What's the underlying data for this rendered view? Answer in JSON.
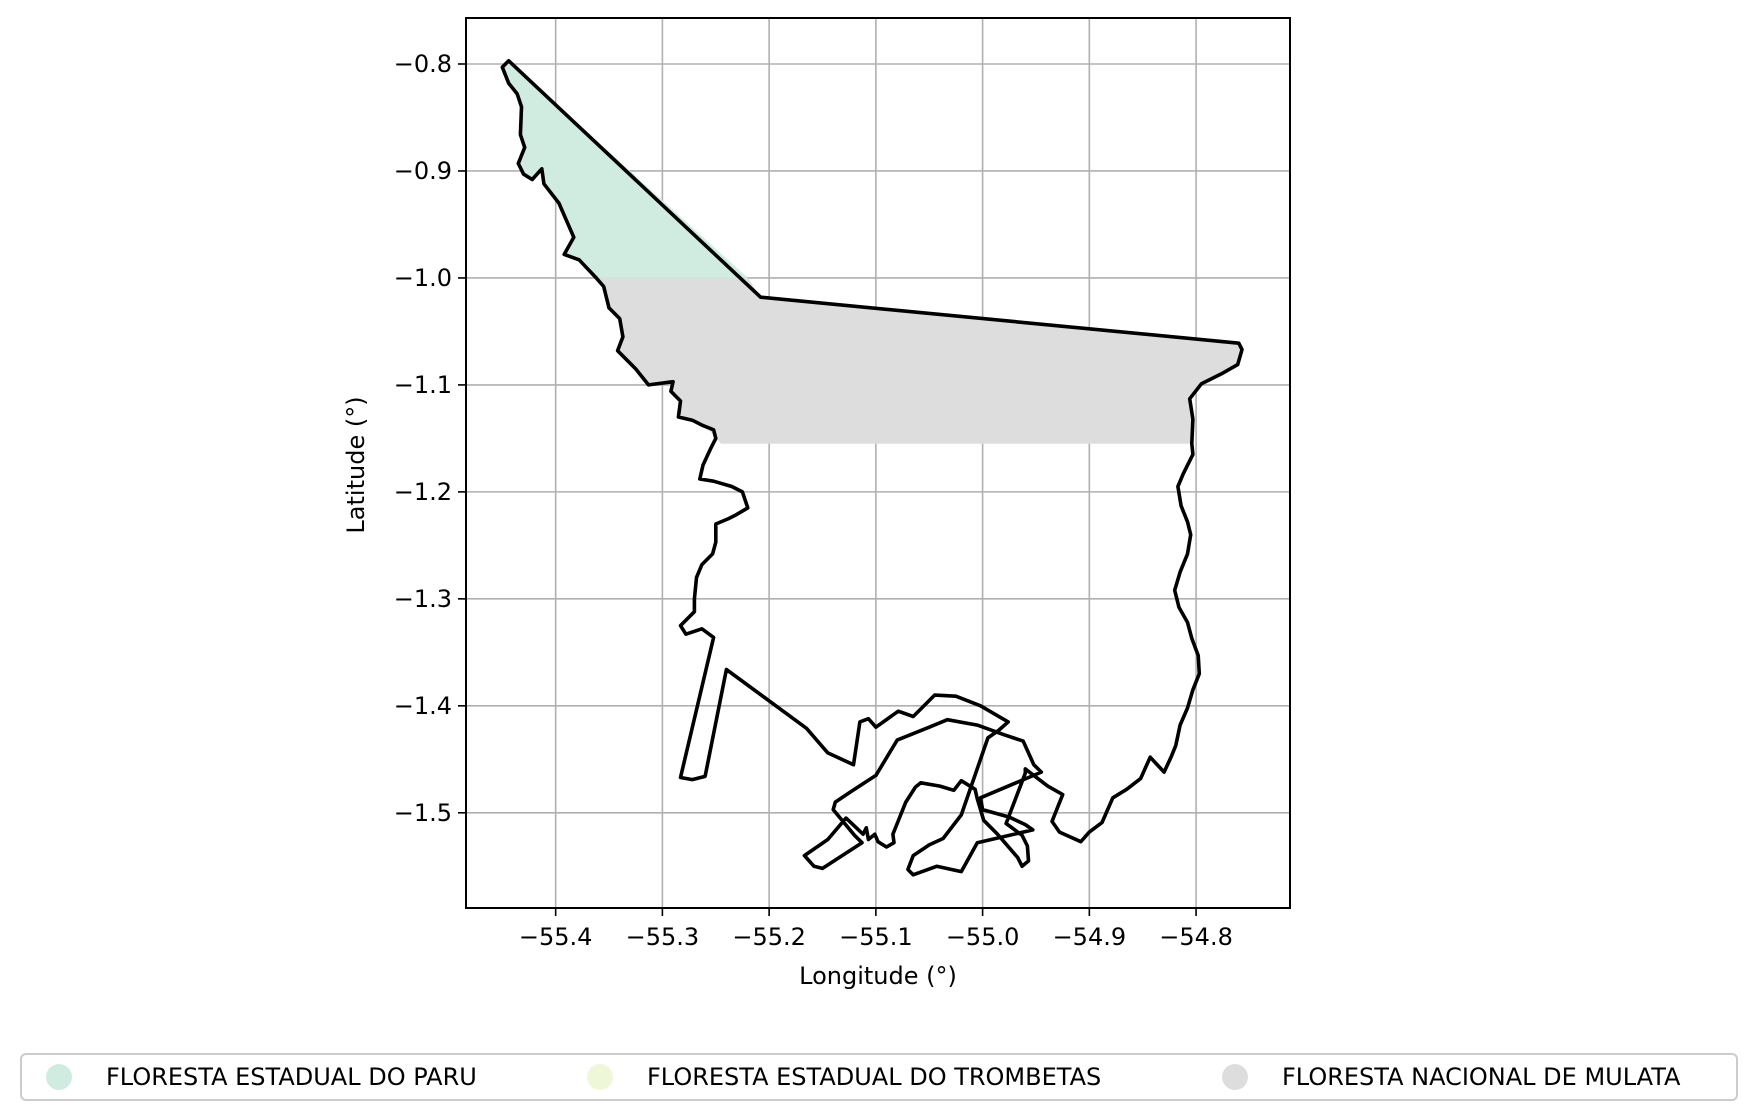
{
  "chart_data": {
    "type": "map",
    "xlabel": "Longitude (°)",
    "ylabel": "Latitude (°)",
    "xlim": [
      -55.484,
      -54.712
    ],
    "ylim": [
      -1.589,
      -0.757
    ],
    "xticks": [
      -55.4,
      -55.3,
      -55.2,
      -55.1,
      -55.0,
      -54.9,
      -54.8
    ],
    "xtick_labels": [
      "−55.4",
      "−55.3",
      "−55.2",
      "−55.1",
      "−55.0",
      "−54.9",
      "−54.8"
    ],
    "yticks": [
      -0.8,
      -0.9,
      -1.0,
      -1.1,
      -1.2,
      -1.3,
      -1.4,
      -1.5
    ],
    "ytick_labels": [
      "−0.8",
      "−0.9",
      "−1.0",
      "−1.1",
      "−1.2",
      "−1.3",
      "−1.4",
      "−1.5"
    ],
    "grid": true,
    "legend_position": "bottom",
    "outline_color": "#000000",
    "regions": [
      {
        "name": "FLORESTA ESTADUAL DO PARU",
        "color": "#d0ece0",
        "polygon": [
          [
            -55.444,
            -0.797
          ],
          [
            -55.22,
            -1.0
          ],
          [
            -55.362,
            -1.0
          ],
          [
            -55.378,
            -0.983
          ],
          [
            -55.392,
            -0.978
          ],
          [
            -55.383,
            -0.962
          ],
          [
            -55.397,
            -0.93
          ],
          [
            -55.411,
            -0.912
          ],
          [
            -55.413,
            -0.898
          ],
          [
            -55.422,
            -0.908
          ],
          [
            -55.43,
            -0.903
          ],
          [
            -55.435,
            -0.893
          ],
          [
            -55.429,
            -0.878
          ],
          [
            -55.433,
            -0.866
          ],
          [
            -55.432,
            -0.84
          ],
          [
            -55.436,
            -0.828
          ],
          [
            -55.444,
            -0.818
          ],
          [
            -55.45,
            -0.803
          ]
        ]
      },
      {
        "name": "FLORESTA ESTADUAL DO TROMBETAS",
        "color": "#eef7d8",
        "polygon": []
      },
      {
        "name": "FLORESTA NACIONAL DE MULATA",
        "color": "#dddddd",
        "polygon": [
          [
            -55.362,
            -1.0
          ],
          [
            -55.22,
            -1.0
          ],
          [
            -55.208,
            -1.018
          ],
          [
            -54.76,
            -1.061
          ],
          [
            -54.757,
            -1.067
          ],
          [
            -54.761,
            -1.081
          ],
          [
            -54.775,
            -1.089
          ],
          [
            -54.795,
            -1.099
          ],
          [
            -54.806,
            -1.113
          ],
          [
            -54.803,
            -1.132
          ],
          [
            -54.804,
            -1.155
          ],
          [
            -55.245,
            -1.155
          ],
          [
            -55.26,
            -1.138
          ],
          [
            -55.27,
            -1.135
          ],
          [
            -55.285,
            -1.13
          ],
          [
            -55.283,
            -1.115
          ],
          [
            -55.292,
            -1.106
          ],
          [
            -55.29,
            -1.097
          ],
          [
            -55.313,
            -1.1
          ],
          [
            -55.325,
            -1.085
          ],
          [
            -55.342,
            -1.068
          ],
          [
            -55.337,
            -1.055
          ],
          [
            -55.34,
            -1.038
          ],
          [
            -55.35,
            -1.028
          ],
          [
            -55.355,
            -1.008
          ]
        ]
      }
    ],
    "boundary": [
      [
        -55.444,
        -0.797
      ],
      [
        -55.208,
        -1.018
      ],
      [
        -54.76,
        -1.061
      ],
      [
        -54.757,
        -1.067
      ],
      [
        -54.761,
        -1.081
      ],
      [
        -54.775,
        -1.089
      ],
      [
        -54.795,
        -1.099
      ],
      [
        -54.806,
        -1.113
      ],
      [
        -54.803,
        -1.132
      ],
      [
        -54.804,
        -1.155
      ],
      [
        -54.803,
        -1.165
      ],
      [
        -54.812,
        -1.183
      ],
      [
        -54.817,
        -1.195
      ],
      [
        -54.814,
        -1.213
      ],
      [
        -54.808,
        -1.228
      ],
      [
        -54.805,
        -1.24
      ],
      [
        -54.808,
        -1.258
      ],
      [
        -54.815,
        -1.275
      ],
      [
        -54.82,
        -1.292
      ],
      [
        -54.816,
        -1.308
      ],
      [
        -54.808,
        -1.322
      ],
      [
        -54.804,
        -1.337
      ],
      [
        -54.798,
        -1.353
      ],
      [
        -54.797,
        -1.37
      ],
      [
        -54.803,
        -1.385
      ],
      [
        -54.808,
        -1.402
      ],
      [
        -54.815,
        -1.418
      ],
      [
        -54.819,
        -1.437
      ],
      [
        -54.823,
        -1.447
      ],
      [
        -54.83,
        -1.462
      ],
      [
        -54.843,
        -1.448
      ],
      [
        -54.852,
        -1.468
      ],
      [
        -54.865,
        -1.478
      ],
      [
        -54.878,
        -1.486
      ],
      [
        -54.888,
        -1.509
      ],
      [
        -54.9,
        -1.518
      ],
      [
        -54.908,
        -1.527
      ],
      [
        -54.928,
        -1.518
      ],
      [
        -54.935,
        -1.508
      ],
      [
        -54.925,
        -1.483
      ],
      [
        -54.939,
        -1.475
      ],
      [
        -54.96,
        -1.459
      ],
      [
        -54.96,
        -1.463
      ],
      [
        -54.978,
        -1.51
      ],
      [
        -54.963,
        -1.521
      ],
      [
        -54.958,
        -1.531
      ],
      [
        -54.957,
        -1.545
      ],
      [
        -54.963,
        -1.55
      ],
      [
        -54.967,
        -1.542
      ],
      [
        -54.986,
        -1.52
      ],
      [
        -54.999,
        -1.507
      ],
      [
        -55.005,
        -1.487
      ],
      [
        -55.007,
        -1.478
      ],
      [
        -55.02,
        -1.47
      ],
      [
        -55.027,
        -1.479
      ],
      [
        -55.04,
        -1.475
      ],
      [
        -55.058,
        -1.472
      ],
      [
        -55.063,
        -1.476
      ],
      [
        -55.072,
        -1.49
      ],
      [
        -55.08,
        -1.51
      ],
      [
        -55.084,
        -1.52
      ],
      [
        -55.083,
        -1.528
      ],
      [
        -55.09,
        -1.532
      ],
      [
        -55.098,
        -1.527
      ],
      [
        -55.101,
        -1.52
      ],
      [
        -55.107,
        -1.525
      ],
      [
        -55.109,
        -1.514
      ],
      [
        -55.112,
        -1.52
      ],
      [
        -55.128,
        -1.505
      ],
      [
        -55.145,
        -1.525
      ],
      [
        -55.167,
        -1.54
      ],
      [
        -55.158,
        -1.55
      ],
      [
        -55.15,
        -1.552
      ],
      [
        -55.113,
        -1.528
      ],
      [
        -55.12,
        -1.521
      ],
      [
        -55.14,
        -1.497
      ],
      [
        -55.138,
        -1.49
      ],
      [
        -55.123,
        -1.48
      ],
      [
        -55.1,
        -1.465
      ],
      [
        -55.08,
        -1.432
      ],
      [
        -55.05,
        -1.42
      ],
      [
        -55.033,
        -1.413
      ],
      [
        -55.005,
        -1.418
      ],
      [
        -54.98,
        -1.427
      ],
      [
        -54.962,
        -1.433
      ],
      [
        -54.952,
        -1.455
      ],
      [
        -54.945,
        -1.462
      ],
      [
        -55.002,
        -1.486
      ],
      [
        -55.0,
        -1.497
      ],
      [
        -54.975,
        -1.504
      ],
      [
        -54.96,
        -1.511
      ],
      [
        -54.953,
        -1.516
      ],
      [
        -55.005,
        -1.528
      ],
      [
        -55.02,
        -1.555
      ],
      [
        -55.043,
        -1.55
      ],
      [
        -55.065,
        -1.558
      ],
      [
        -55.07,
        -1.553
      ],
      [
        -55.065,
        -1.54
      ],
      [
        -55.05,
        -1.53
      ],
      [
        -55.037,
        -1.524
      ],
      [
        -55.02,
        -1.502
      ],
      [
        -54.995,
        -1.43
      ],
      [
        -54.985,
        -1.423
      ],
      [
        -54.976,
        -1.415
      ],
      [
        -55.002,
        -1.4
      ],
      [
        -55.025,
        -1.391
      ],
      [
        -55.045,
        -1.39
      ],
      [
        -55.057,
        -1.402
      ],
      [
        -55.065,
        -1.41
      ],
      [
        -55.079,
        -1.405
      ],
      [
        -55.1,
        -1.42
      ],
      [
        -55.107,
        -1.412
      ],
      [
        -55.115,
        -1.415
      ],
      [
        -55.121,
        -1.455
      ],
      [
        -55.145,
        -1.444
      ],
      [
        -55.165,
        -1.421
      ],
      [
        -55.24,
        -1.366
      ],
      [
        -55.26,
        -1.466
      ],
      [
        -55.272,
        -1.469
      ],
      [
        -55.283,
        -1.467
      ],
      [
        -55.252,
        -1.336
      ],
      [
        -55.263,
        -1.328
      ],
      [
        -55.278,
        -1.333
      ],
      [
        -55.283,
        -1.325
      ],
      [
        -55.27,
        -1.312
      ],
      [
        -55.27,
        -1.3
      ],
      [
        -55.268,
        -1.28
      ],
      [
        -55.263,
        -1.268
      ],
      [
        -55.253,
        -1.258
      ],
      [
        -55.25,
        -1.247
      ],
      [
        -55.25,
        -1.23
      ],
      [
        -55.238,
        -1.225
      ],
      [
        -55.232,
        -1.222
      ],
      [
        -55.22,
        -1.215
      ],
      [
        -55.225,
        -1.2
      ],
      [
        -55.235,
        -1.195
      ],
      [
        -55.252,
        -1.19
      ],
      [
        -55.265,
        -1.188
      ],
      [
        -55.262,
        -1.175
      ],
      [
        -55.255,
        -1.16
      ],
      [
        -55.25,
        -1.15
      ],
      [
        -55.252,
        -1.142
      ],
      [
        -55.262,
        -1.138
      ],
      [
        -55.272,
        -1.133
      ],
      [
        -55.285,
        -1.13
      ],
      [
        -55.283,
        -1.115
      ],
      [
        -55.292,
        -1.106
      ],
      [
        -55.29,
        -1.097
      ],
      [
        -55.313,
        -1.1
      ],
      [
        -55.325,
        -1.085
      ],
      [
        -55.342,
        -1.068
      ],
      [
        -55.337,
        -1.055
      ],
      [
        -55.34,
        -1.038
      ],
      [
        -55.35,
        -1.028
      ],
      [
        -55.355,
        -1.008
      ],
      [
        -55.362,
        -1.0
      ],
      [
        -55.378,
        -0.983
      ],
      [
        -55.392,
        -0.978
      ],
      [
        -55.383,
        -0.962
      ],
      [
        -55.397,
        -0.93
      ],
      [
        -55.411,
        -0.912
      ],
      [
        -55.413,
        -0.898
      ],
      [
        -55.422,
        -0.908
      ],
      [
        -55.43,
        -0.903
      ],
      [
        -55.435,
        -0.893
      ],
      [
        -55.429,
        -0.878
      ],
      [
        -55.433,
        -0.866
      ],
      [
        -55.432,
        -0.84
      ],
      [
        -55.436,
        -0.828
      ],
      [
        -55.444,
        -0.818
      ],
      [
        -55.45,
        -0.803
      ]
    ]
  },
  "legend": {
    "items": [
      {
        "label": "FLORESTA ESTADUAL DO PARU",
        "color": "#d0ece0"
      },
      {
        "label": "FLORESTA ESTADUAL DO TROMBETAS",
        "color": "#eef7d8"
      },
      {
        "label": "FLORESTA NACIONAL DE MULATA",
        "color": "#dddddd"
      }
    ]
  }
}
